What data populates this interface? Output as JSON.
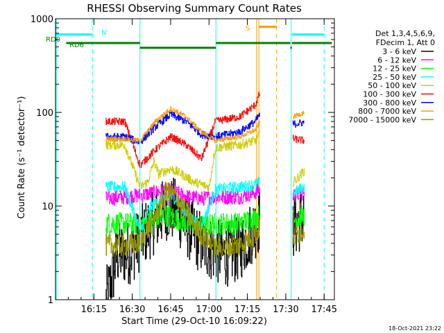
{
  "chart_data": {
    "type": "line",
    "title": "RHESSI Observing Summary Count Rates",
    "xlabel": "Start Time (29-Oct-10 16:09:22)",
    "ylabel": "Count Rate (s⁻¹ detector⁻¹)",
    "yscale": "log",
    "ylim": [
      1,
      1000
    ],
    "xlim_minutes": [
      16.0,
      17.8167
    ],
    "x_ticks": [
      {
        "label": "16:15",
        "t": 16.25
      },
      {
        "label": "16:30",
        "t": 16.5
      },
      {
        "label": "16:45",
        "t": 16.75
      },
      {
        "label": "17:00",
        "t": 17.0
      },
      {
        "label": "17:15",
        "t": 17.25
      },
      {
        "label": "17:30",
        "t": 17.5
      },
      {
        "label": "17:45",
        "t": 17.75
      }
    ],
    "y_ticks": [
      {
        "label": "1",
        "v": 1
      },
      {
        "label": "10",
        "v": 10
      },
      {
        "label": "100",
        "v": 100
      },
      {
        "label": "1000",
        "v": 1000
      }
    ],
    "legend_header": [
      "Det 1,3,4,5,6,9,",
      "FDecim 1, Att 0"
    ],
    "legend_placement": "right",
    "segments": [
      [
        16.327,
        16.55
      ],
      [
        16.555,
        17.04
      ],
      [
        17.045,
        17.33
      ],
      [
        17.545,
        17.62
      ]
    ],
    "series": [
      {
        "name": "3 - 6 keV",
        "color": "#000000",
        "noise": 0.35,
        "values": [
          [
            16.33,
            1
          ],
          [
            16.36,
            1.5
          ],
          [
            16.4,
            3
          ],
          [
            16.5,
            3.3
          ],
          [
            16.55,
            4.5
          ],
          [
            16.65,
            7
          ],
          [
            16.72,
            9.5
          ],
          [
            16.78,
            9
          ],
          [
            16.86,
            6
          ],
          [
            16.95,
            4
          ],
          [
            17.04,
            3.3
          ],
          [
            17.1,
            3
          ],
          [
            17.2,
            3.5
          ],
          [
            17.3,
            6
          ],
          [
            17.33,
            7
          ],
          [
            17.55,
            6
          ],
          [
            17.62,
            8
          ]
        ]
      },
      {
        "name": "6 - 12 keV",
        "color": "#ff00ff",
        "noise": 0.08,
        "values": [
          [
            16.33,
            12
          ],
          [
            16.45,
            12.5
          ],
          [
            16.55,
            13
          ],
          [
            16.65,
            14
          ],
          [
            16.72,
            15
          ],
          [
            16.78,
            14
          ],
          [
            16.86,
            12.5
          ],
          [
            16.95,
            12
          ],
          [
            17.04,
            12.5
          ],
          [
            17.2,
            12.5
          ],
          [
            17.3,
            14
          ],
          [
            17.33,
            15
          ],
          [
            17.55,
            13
          ],
          [
            17.62,
            14
          ]
        ]
      },
      {
        "name": "12 - 25 keV",
        "color": "#00ff00",
        "noise": 0.12,
        "values": [
          [
            16.33,
            6.5
          ],
          [
            16.45,
            6.5
          ],
          [
            16.55,
            6.5
          ],
          [
            16.62,
            7
          ],
          [
            16.72,
            8
          ],
          [
            16.78,
            7.5
          ],
          [
            16.86,
            6.5
          ],
          [
            16.95,
            6
          ],
          [
            17.04,
            6.5
          ],
          [
            17.2,
            6.5
          ],
          [
            17.3,
            7.5
          ],
          [
            17.33,
            8
          ],
          [
            17.55,
            7
          ],
          [
            17.62,
            8
          ]
        ]
      },
      {
        "name": "25 - 50 keV",
        "color": "#00ffff",
        "noise": 0.06,
        "values": [
          [
            16.33,
            16
          ],
          [
            16.45,
            16
          ],
          [
            16.55,
            5.5
          ],
          [
            16.62,
            10
          ],
          [
            16.72,
            13
          ],
          [
            16.78,
            12
          ],
          [
            16.86,
            8
          ],
          [
            16.95,
            6
          ],
          [
            17.04,
            15
          ],
          [
            17.2,
            16
          ],
          [
            17.3,
            17
          ],
          [
            17.33,
            18
          ],
          [
            17.55,
            14
          ],
          [
            17.62,
            16
          ]
        ]
      },
      {
        "name": "50 - 100 keV",
        "color": "#cccc00",
        "noise": 0.05,
        "values": [
          [
            16.33,
            45
          ],
          [
            16.45,
            45
          ],
          [
            16.55,
            16
          ],
          [
            16.6,
            18
          ],
          [
            16.64,
            30
          ],
          [
            16.67,
            22
          ],
          [
            16.75,
            25
          ],
          [
            16.82,
            22
          ],
          [
            16.9,
            18
          ],
          [
            17.0,
            16
          ],
          [
            17.04,
            42
          ],
          [
            17.2,
            45
          ],
          [
            17.3,
            50
          ],
          [
            17.33,
            58
          ],
          [
            17.55,
            18
          ],
          [
            17.62,
            24
          ]
        ]
      },
      {
        "name": "100 - 300 keV",
        "color": "#ff0000",
        "noise": 0.04,
        "values": [
          [
            16.33,
            80
          ],
          [
            16.45,
            80
          ],
          [
            16.55,
            27
          ],
          [
            16.65,
            40
          ],
          [
            16.75,
            55
          ],
          [
            16.85,
            45
          ],
          [
            16.95,
            32
          ],
          [
            17.04,
            80
          ],
          [
            17.2,
            90
          ],
          [
            17.3,
            120
          ],
          [
            17.33,
            160
          ],
          [
            17.55,
            52
          ],
          [
            17.62,
            50
          ]
        ]
      },
      {
        "name": "300 - 800 keV",
        "color": "#0000ff",
        "noise": 0.04,
        "values": [
          [
            16.33,
            55
          ],
          [
            16.45,
            55
          ],
          [
            16.55,
            48
          ],
          [
            16.65,
            70
          ],
          [
            16.75,
            95
          ],
          [
            16.85,
            80
          ],
          [
            16.95,
            58
          ],
          [
            17.04,
            55
          ],
          [
            17.2,
            62
          ],
          [
            17.3,
            80
          ],
          [
            17.33,
            95
          ],
          [
            17.55,
            75
          ],
          [
            17.62,
            78
          ]
        ]
      },
      {
        "name": "800 - 7000 keV",
        "color": "#ff9900",
        "noise": 0.025,
        "values": [
          [
            16.33,
            52
          ],
          [
            16.45,
            52
          ],
          [
            16.55,
            50
          ],
          [
            16.65,
            80
          ],
          [
            16.75,
            110
          ],
          [
            16.85,
            90
          ],
          [
            16.95,
            62
          ],
          [
            17.04,
            50
          ],
          [
            17.2,
            55
          ],
          [
            17.3,
            65
          ],
          [
            17.33,
            78
          ],
          [
            17.55,
            90
          ],
          [
            17.62,
            100
          ]
        ]
      },
      {
        "name": "7000 - 15000 keV",
        "color": "#999900",
        "noise": 0.12,
        "values": [
          [
            16.33,
            3.8
          ],
          [
            16.45,
            3.8
          ],
          [
            16.55,
            4
          ],
          [
            16.65,
            8
          ],
          [
            16.72,
            14
          ],
          [
            16.78,
            13
          ],
          [
            16.86,
            8
          ],
          [
            16.95,
            5
          ],
          [
            17.04,
            3.6
          ],
          [
            17.2,
            3.8
          ],
          [
            17.3,
            5
          ],
          [
            17.33,
            6
          ],
          [
            17.55,
            4.5
          ],
          [
            17.62,
            6
          ]
        ]
      }
    ],
    "flags": [
      {
        "name": "RD0",
        "color": "#008000",
        "value_y": 550,
        "segments": [
          [
            16.07,
            16.55
          ],
          [
            17.045,
            17.53
          ],
          [
            17.54,
            17.8
          ]
        ]
      },
      {
        "name": "RD6",
        "color": "#008000",
        "value_y": 490,
        "segments": [
          [
            16.55,
            17.045
          ],
          [
            17.53,
            17.54
          ]
        ]
      },
      {
        "name": "N",
        "color": "#00ffff",
        "value_y": 680,
        "segments": [
          [
            16.0,
            16.24
          ],
          [
            17.54,
            17.75
          ]
        ]
      },
      {
        "name": "S",
        "color": "#ff9900",
        "value_y": 820,
        "segments": [
          [
            17.325,
            17.44
          ]
        ]
      }
    ],
    "vertical_markers": [
      {
        "t": 16.005,
        "color": "#00ffff",
        "style": "solid"
      },
      {
        "t": 16.24,
        "color": "#00ffff",
        "style": "dashed"
      },
      {
        "t": 16.55,
        "color": "#00ffff",
        "style": "solid"
      },
      {
        "t": 17.045,
        "color": "#00ffff",
        "style": "solid"
      },
      {
        "t": 17.31,
        "color": "#ff9900",
        "style": "solid"
      },
      {
        "t": 17.325,
        "color": "#ff9900",
        "style": "solid"
      },
      {
        "t": 17.44,
        "color": "#ff9900",
        "style": "dashed"
      },
      {
        "t": 17.535,
        "color": "#00ffff",
        "style": "solid"
      },
      {
        "t": 17.75,
        "color": "#00ffff",
        "style": "dashed"
      }
    ],
    "timestamp": "18-Oct-2021 23:22"
  }
}
